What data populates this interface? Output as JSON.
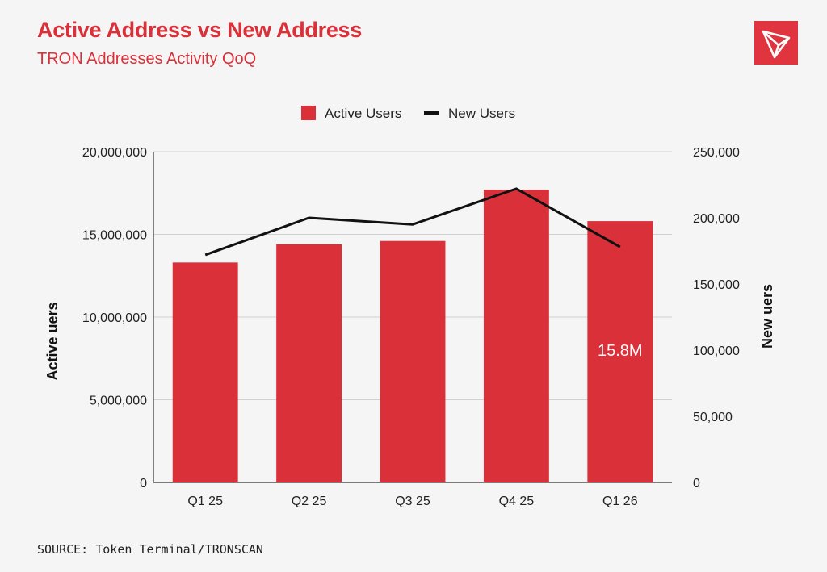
{
  "header": {
    "title": "Active Address vs New Address",
    "subtitle": "TRON Addresses Activity QoQ"
  },
  "footer": {
    "source": "SOURCE: Token Terminal/TRONSCAN"
  },
  "logo": {
    "icon": "tron-logo-icon",
    "color": "#e0353f"
  },
  "chart_data": {
    "type": "bar",
    "categories": [
      "Q1 25",
      "Q2 25",
      "Q3 25",
      "Q4 25",
      "Q1 26"
    ],
    "series": [
      {
        "name": "Active Users",
        "type": "bar",
        "axis": "left",
        "color": "#d9303a",
        "values": [
          13300000,
          14400000,
          14600000,
          17700000,
          15800000
        ]
      },
      {
        "name": "New Users",
        "type": "line",
        "axis": "right",
        "color": "#111111",
        "values": [
          172000,
          200000,
          195000,
          222000,
          178000
        ]
      }
    ],
    "ylabel": "Active uers",
    "ylabel_right": "New uers",
    "ylim": [
      0,
      20000000
    ],
    "ylim_right": [
      0,
      250000
    ],
    "yticks": [
      "0",
      "5,000,000",
      "10,000,000",
      "15,000,000",
      "20,000,000"
    ],
    "yticks_right": [
      "0",
      "50,000",
      "100,000",
      "150,000",
      "200,000",
      "250,000"
    ],
    "data_labels": [
      {
        "category": "Q1 26",
        "text": "15.8M"
      }
    ],
    "legend": "top-center",
    "grid": true
  }
}
